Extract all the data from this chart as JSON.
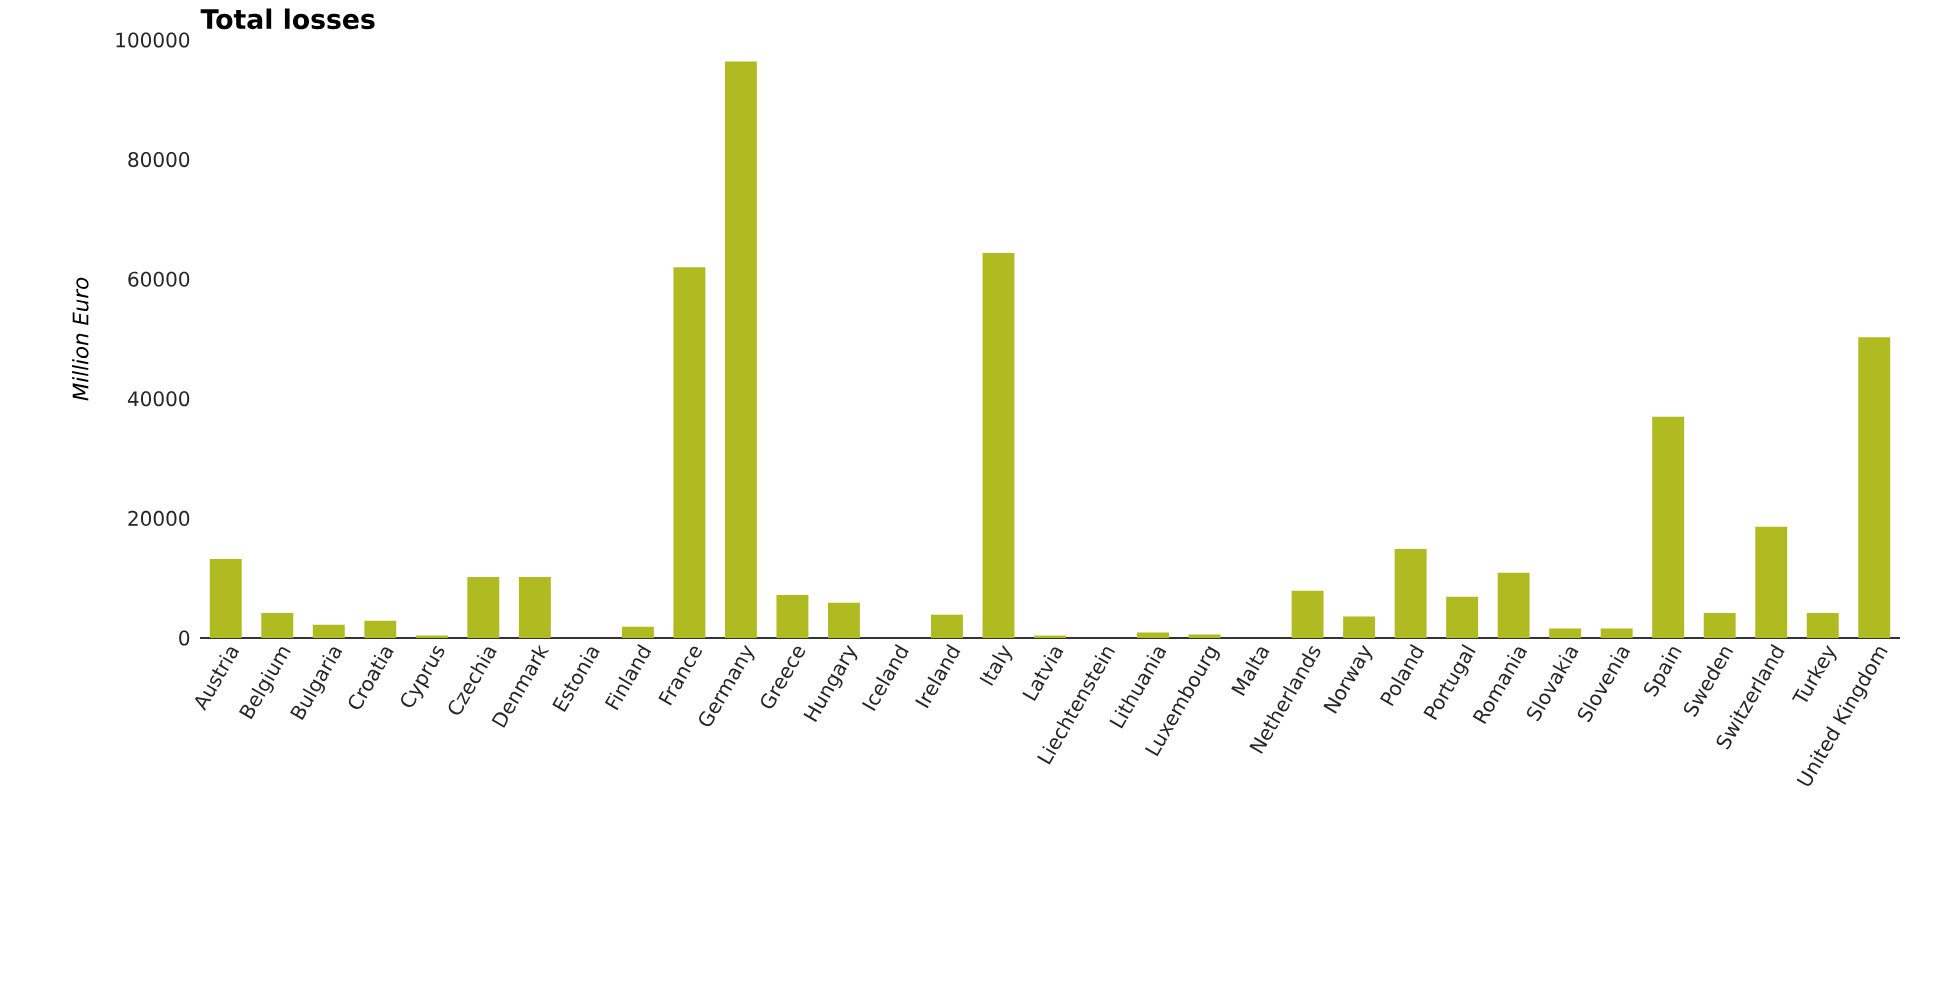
{
  "chart_data": {
    "type": "bar",
    "title": "Total losses",
    "ylabel": "Million Euro",
    "categories": [
      "Austria",
      "Belgium",
      "Bulgaria",
      "Croatia",
      "Cyprus",
      "Czechia",
      "Denmark",
      "Estonia",
      "Finland",
      "France",
      "Germany",
      "Greece",
      "Hungary",
      "Iceland",
      "Ireland",
      "Italy",
      "Latvia",
      "Liechtenstein",
      "Lithuania",
      "Luxembourg",
      "Malta",
      "Netherlands",
      "Norway",
      "Poland",
      "Portugal",
      "Romania",
      "Slovakia",
      "Slovenia",
      "Spain",
      "Sweden",
      "Switzerland",
      "Turkey",
      "United Kingdom"
    ],
    "values": [
      13200,
      4200,
      2200,
      2900,
      400,
      10200,
      10200,
      0,
      1900,
      62000,
      96400,
      7200,
      5900,
      0,
      3900,
      64400,
      400,
      0,
      900,
      600,
      0,
      7900,
      3600,
      14900,
      6900,
      10900,
      1600,
      1600,
      37000,
      4200,
      18600,
      4200,
      50300
    ],
    "color": "#afbb21",
    "ylim": [
      0,
      100000
    ],
    "yticks": [
      0,
      20000,
      40000,
      60000,
      80000,
      100000
    ],
    "grid": false
  }
}
